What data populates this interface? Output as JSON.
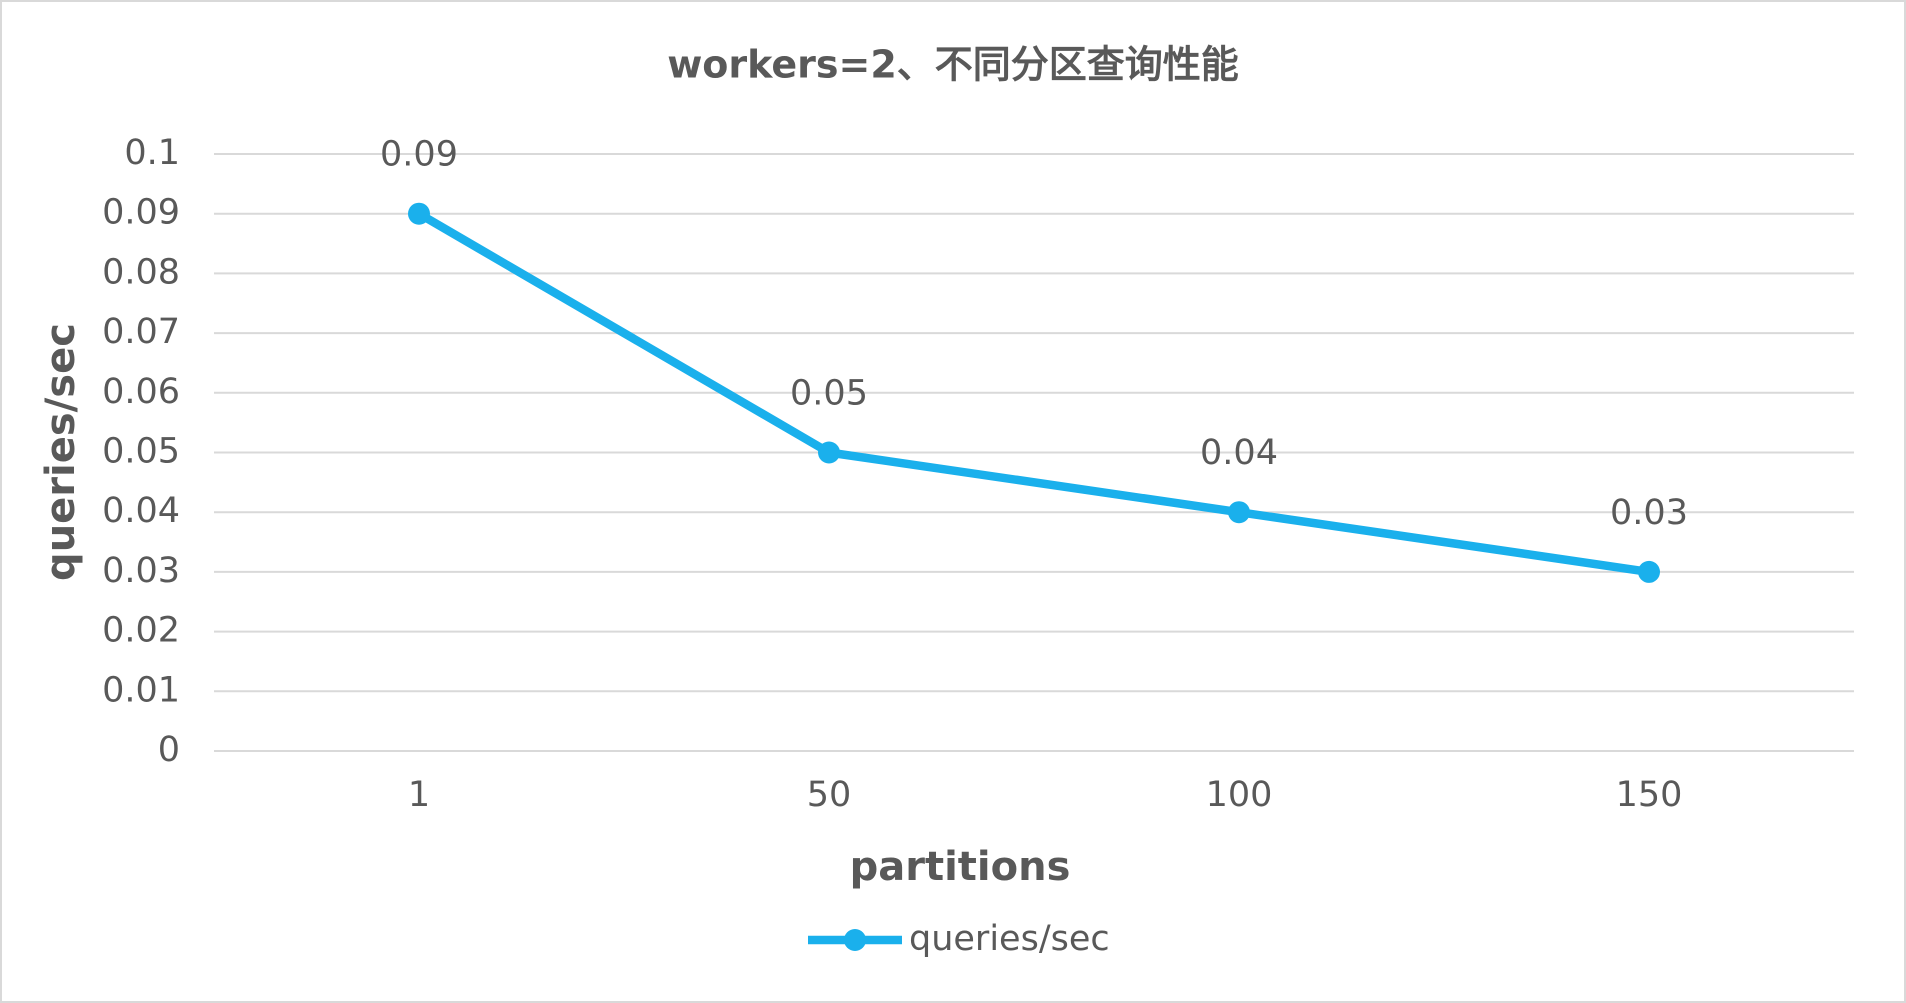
{
  "chart_data": {
    "type": "line",
    "title": "workers=2、不同分区查询性能",
    "x_label": "partitions",
    "y_label": "queries/sec",
    "categories": [
      "1",
      "50",
      "100",
      "150"
    ],
    "series": [
      {
        "name": "queries/sec",
        "color": "#1ab0ec",
        "values": [
          0.09,
          0.05,
          0.04,
          0.03
        ]
      }
    ],
    "ylim": [
      0,
      0.1
    ],
    "yticks": [
      0,
      0.01,
      0.02,
      0.03,
      0.04,
      0.05,
      0.06,
      0.07,
      0.08,
      0.09,
      0.1
    ],
    "grid": true,
    "legend": "bottom",
    "data_labels": true
  }
}
